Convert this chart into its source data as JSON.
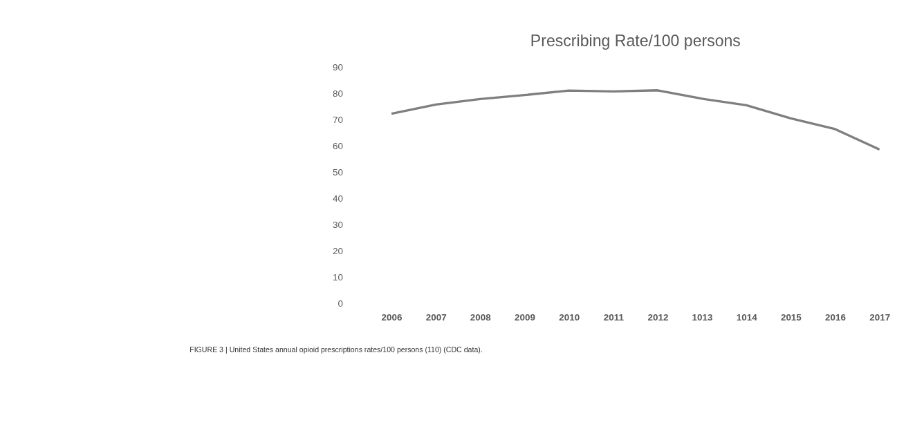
{
  "chart_data": {
    "type": "line",
    "title": "Prescribing Rate/100 persons",
    "categories": [
      "2006",
      "2007",
      "2008",
      "2009",
      "2010",
      "2011",
      "2012",
      "1013",
      "1014",
      "2015",
      "2016",
      "2017"
    ],
    "series": [
      {
        "color": "#7f7f7f",
        "values": [
          72.4,
          75.9,
          78.0,
          79.5,
          81.2,
          80.9,
          81.3,
          78.1,
          75.6,
          70.6,
          66.5,
          58.7
        ]
      }
    ],
    "ylim": [
      0,
      90
    ],
    "yticks": [
      0,
      10,
      20,
      30,
      40,
      50,
      60,
      70,
      80,
      90
    ],
    "grid": false,
    "marker": "none",
    "line_style": "solid",
    "annotations": [
      "FIGURE 3 | United States annual opioid prescriptions rates/100 persons (110) (CDC data)."
    ]
  }
}
